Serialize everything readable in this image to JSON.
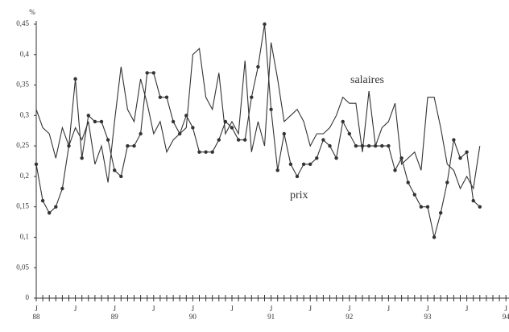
{
  "chart_data": {
    "type": "line",
    "y_unit": "%",
    "categories": [
      "J",
      null,
      null,
      null,
      null,
      null,
      "J",
      null,
      null,
      null,
      null,
      null,
      "J",
      null,
      null,
      null,
      null,
      null,
      "J",
      null,
      null,
      null,
      null,
      null,
      "J",
      null,
      null,
      null,
      null,
      null,
      "J",
      null,
      null,
      null,
      null,
      null,
      "J",
      null,
      null,
      null,
      null,
      null,
      "J",
      null,
      null,
      null,
      null,
      null,
      "J",
      null,
      null,
      null,
      null,
      null,
      "J",
      null,
      null,
      null,
      null,
      null,
      "J",
      null,
      null,
      null,
      null,
      null,
      "J",
      null,
      null,
      null,
      null,
      null,
      "J"
    ],
    "years": [
      "88",
      null,
      null,
      null,
      null,
      null,
      null,
      null,
      null,
      null,
      null,
      null,
      "89",
      null,
      null,
      null,
      null,
      null,
      null,
      null,
      null,
      null,
      null,
      null,
      "90",
      null,
      null,
      null,
      null,
      null,
      null,
      null,
      null,
      null,
      null,
      null,
      "91",
      null,
      null,
      null,
      null,
      null,
      null,
      null,
      null,
      null,
      null,
      null,
      "92",
      null,
      null,
      null,
      null,
      null,
      null,
      null,
      null,
      null,
      null,
      null,
      "93",
      null,
      null,
      null,
      null,
      null,
      null,
      null,
      null,
      null,
      null,
      null,
      "94"
    ],
    "series": [
      {
        "name": "salaires",
        "color": "#333333",
        "markers": false,
        "values": [
          0.31,
          0.28,
          0.27,
          0.23,
          0.28,
          0.25,
          0.28,
          0.26,
          0.29,
          0.22,
          0.25,
          0.19,
          0.29,
          0.38,
          0.31,
          0.29,
          0.36,
          0.32,
          0.27,
          0.29,
          0.24,
          0.26,
          0.27,
          0.28,
          0.4,
          0.41,
          0.33,
          0.31,
          0.37,
          0.27,
          0.29,
          0.27,
          0.39,
          0.24,
          0.29,
          0.25,
          0.42,
          0.36,
          0.29,
          0.3,
          0.31,
          0.29,
          0.25,
          0.27,
          0.27,
          0.28,
          0.3,
          0.33,
          0.32,
          0.32,
          0.24,
          0.34,
          0.25,
          0.28,
          0.29,
          0.32,
          0.22,
          0.23,
          0.24,
          0.21,
          0.33,
          0.33,
          0.28,
          0.22,
          0.21,
          0.18,
          0.2,
          0.18,
          0.25,
          null,
          null,
          null,
          null
        ]
      },
      {
        "name": "prix",
        "color": "#333333",
        "markers": true,
        "values": [
          0.22,
          0.16,
          0.14,
          0.15,
          0.18,
          0.25,
          0.36,
          0.23,
          0.3,
          0.29,
          0.29,
          0.26,
          0.21,
          0.2,
          0.25,
          0.25,
          0.27,
          0.37,
          0.37,
          0.33,
          0.33,
          0.29,
          0.27,
          0.3,
          0.28,
          0.24,
          0.24,
          0.24,
          0.26,
          0.29,
          0.28,
          0.26,
          0.26,
          0.33,
          0.38,
          0.45,
          0.31,
          0.21,
          0.27,
          0.22,
          0.2,
          0.22,
          0.22,
          0.23,
          0.26,
          0.25,
          0.23,
          0.29,
          0.27,
          0.25,
          0.25,
          0.25,
          0.25,
          0.25,
          0.25,
          0.21,
          0.23,
          0.19,
          0.17,
          0.15,
          0.15,
          0.1,
          0.14,
          0.19,
          0.26,
          0.23,
          0.24,
          0.16,
          0.15,
          null,
          null,
          null,
          null
        ]
      }
    ],
    "ylim": [
      0,
      0.45
    ],
    "yticks": [
      0,
      {
        "value": 0.05,
        "label": "0,05"
      },
      {
        "value": 0.1,
        "label": "0,1"
      },
      {
        "value": 0.15,
        "label": "0,15"
      },
      {
        "value": 0.2,
        "label": "0,2"
      },
      {
        "value": 0.25,
        "label": "0,25"
      },
      {
        "value": 0.3,
        "label": "0,3"
      },
      {
        "value": 0.35,
        "label": "0,35"
      },
      {
        "value": 0.4,
        "label": "0,4"
      },
      {
        "value": 0.45,
        "label": "0,45"
      }
    ],
    "grid": false
  }
}
